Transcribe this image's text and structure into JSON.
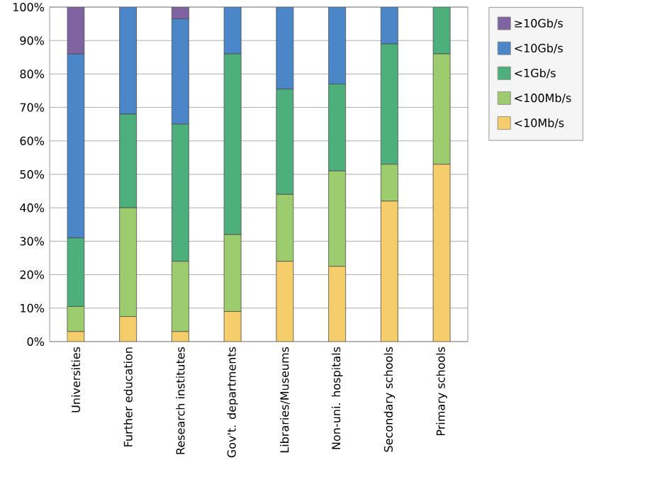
{
  "chart_data": {
    "type": "bar",
    "stacked": true,
    "categories": [
      "Universities",
      "Further education",
      "Research institutes",
      "Gov't. departments",
      "Libraries/Museums",
      "Non-uni. hospitals",
      "Secondary schools",
      "Primary schools"
    ],
    "series": [
      {
        "name": "<10Mb/s",
        "color": "#f5cd6a",
        "values": [
          3,
          7.5,
          3,
          9,
          24,
          22.5,
          42,
          53
        ]
      },
      {
        "name": "<100Mb/s",
        "color": "#9ccc6e",
        "values": [
          7.5,
          32.5,
          21,
          23,
          20,
          28.5,
          11,
          33
        ]
      },
      {
        "name": "<1Gb/s",
        "color": "#4daf7c",
        "values": [
          20.5,
          28,
          41,
          54,
          31.5,
          26,
          36,
          14
        ]
      },
      {
        "name": "<10Gb/s",
        "color": "#4a86c8",
        "values": [
          55,
          32,
          31.5,
          14,
          24.5,
          23,
          11,
          0
        ]
      },
      {
        "name": "≥10Gb/s",
        "color": "#8064a2",
        "values": [
          14,
          0,
          3.5,
          0,
          0,
          0,
          0,
          0
        ]
      }
    ],
    "ylim": [
      0,
      100
    ],
    "yticks": [
      {
        "value": 0,
        "label": "0%"
      },
      {
        "value": 10,
        "label": "10%"
      },
      {
        "value": 20,
        "label": "20%"
      },
      {
        "value": 30,
        "label": "30%"
      },
      {
        "value": 40,
        "label": "40%"
      },
      {
        "value": 50,
        "label": "50%"
      },
      {
        "value": 60,
        "label": "60%"
      },
      {
        "value": 70,
        "label": "70%"
      },
      {
        "value": 80,
        "label": "80%"
      },
      {
        "value": 90,
        "label": "90%"
      },
      {
        "value": 100,
        "label": "100%"
      }
    ],
    "grid": "y",
    "legend": "top right"
  }
}
